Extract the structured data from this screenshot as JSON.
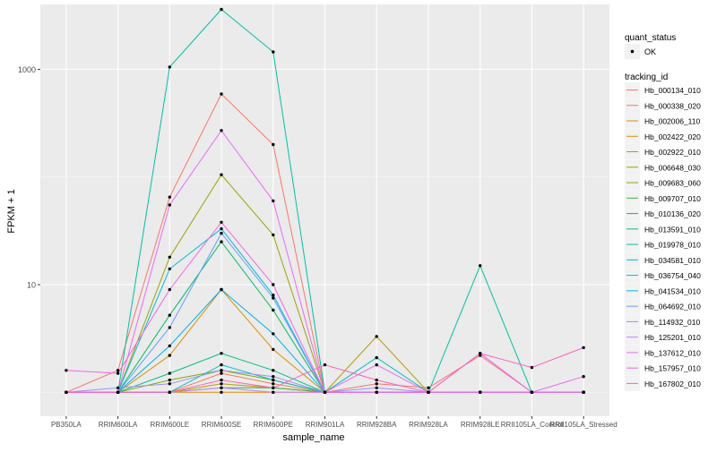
{
  "chart_data": {
    "type": "line",
    "xlabel": "sample_name",
    "ylabel": "FPKM + 1",
    "y_scale": "log10",
    "ylim": [
      0.6,
      4000
    ],
    "y_ticks": [
      10,
      1000
    ],
    "y_tick_labels": [
      "10",
      "1000"
    ],
    "grid": true,
    "legend_position": "right",
    "categories": [
      "PB350LA",
      "RRIM600LA",
      "RRIM600LE",
      "RRIM600SE",
      "RRIM600PE",
      "RRIM901LA",
      "RRIM928BA",
      "RRIM928LA",
      "RRIM928LE",
      "RRII105LA_Control",
      "RRII105LA_Stressed"
    ],
    "quant_legend": {
      "title": "quant_status",
      "entries": [
        {
          "label": "OK"
        }
      ]
    },
    "series_legend_title": "tracking_id",
    "series": [
      {
        "name": "Hb_000134_010",
        "color": "#F8766D",
        "values": [
          1.0,
          1.6,
          65,
          590,
          200,
          1.0,
          1.2,
          1.1,
          2.2,
          1.0,
          1.0
        ]
      },
      {
        "name": "Hb_000338_020",
        "color": "#F07E4F",
        "values": [
          1.0,
          1.0,
          1.0,
          1.5,
          1.2,
          1.0,
          1.0,
          1.0,
          1.0,
          1.0,
          1.0
        ]
      },
      {
        "name": "Hb_002006_110",
        "color": "#E58700",
        "values": [
          1.0,
          1.0,
          1.0,
          1.0,
          1.0,
          1.0,
          1.0,
          1.0,
          1.0,
          1.0,
          1.0
        ]
      },
      {
        "name": "Hb_002422_020",
        "color": "#D79000",
        "values": [
          1.0,
          1.0,
          2.2,
          9,
          2.5,
          1.0,
          1.0,
          1.0,
          1.0,
          1.0,
          1.0
        ]
      },
      {
        "name": "Hb_002922_010",
        "color": "#AD9D00",
        "values": [
          1.0,
          1.0,
          1.0,
          1.2,
          1.1,
          1.0,
          3.3,
          1.0,
          1.0,
          1.0,
          1.0
        ]
      },
      {
        "name": "Hb_006648_030",
        "color": "#9AA300",
        "values": [
          1.0,
          1.0,
          18,
          105,
          29,
          1.0,
          1.0,
          1.0,
          1.0,
          1.0,
          1.0
        ]
      },
      {
        "name": "Hb_009683_060",
        "color": "#79AD00",
        "values": [
          1.0,
          1.0,
          1.3,
          1.6,
          1.3,
          1.0,
          1.0,
          1.0,
          1.0,
          1.0,
          1.0
        ]
      },
      {
        "name": "Hb_009707_010",
        "color": "#3EB34A",
        "values": [
          1.0,
          1.0,
          1.0,
          1.1,
          1.1,
          1.0,
          1.0,
          1.0,
          1.0,
          1.0,
          1.0
        ]
      },
      {
        "name": "Hb_010136_020",
        "color": "#00BA66",
        "values": [
          1.0,
          1.0,
          5.2,
          25,
          5.8,
          1.0,
          1.0,
          1.0,
          1.0,
          1.0,
          1.0
        ]
      },
      {
        "name": "Hb_013591_010",
        "color": "#00BD85",
        "values": [
          1.0,
          1.0,
          1.5,
          2.3,
          1.6,
          1.0,
          1.0,
          1.0,
          1.0,
          1.0,
          1.0
        ]
      },
      {
        "name": "Hb_019978_010",
        "color": "#00C0A2",
        "values": [
          1.0,
          1.0,
          1050,
          3600,
          1450,
          1.0,
          1.0,
          1.0,
          15,
          1.0,
          1.0
        ]
      },
      {
        "name": "Hb_034581_010",
        "color": "#00BFBF",
        "values": [
          1.0,
          1.0,
          1.0,
          1.8,
          1.3,
          1.0,
          2.1,
          1.0,
          1.0,
          1.0,
          1.0
        ]
      },
      {
        "name": "Hb_036754_040",
        "color": "#00BAD8",
        "values": [
          1.0,
          1.0,
          14,
          33,
          8,
          1.0,
          1.0,
          1.0,
          1.0,
          1.0,
          1.0
        ]
      },
      {
        "name": "Hb_041534_010",
        "color": "#00B0F0",
        "values": [
          1.0,
          1.0,
          2.7,
          9,
          3.5,
          1.0,
          1.0,
          1.0,
          1.0,
          1.0,
          1.0
        ]
      },
      {
        "name": "Hb_064692_010",
        "color": "#619CFF",
        "values": [
          1.0,
          1.0,
          4.0,
          30,
          7.5,
          1.0,
          1.0,
          1.0,
          1.0,
          1.0,
          1.0
        ]
      },
      {
        "name": "Hb_114932_010",
        "color": "#A18CFF",
        "values": [
          1.0,
          1.1,
          1.2,
          1.6,
          1.4,
          1.0,
          1.1,
          1.0,
          1.0,
          1.0,
          1.0
        ]
      },
      {
        "name": "Hb_125201_010",
        "color": "#C77CFF",
        "values": [
          1.0,
          1.0,
          1.0,
          1.1,
          1.0,
          1.0,
          1.0,
          1.0,
          1.0,
          1.0,
          1.0
        ]
      },
      {
        "name": "Hb_137612_010",
        "color": "#E76BF3",
        "values": [
          1.0,
          1.0,
          55,
          270,
          60,
          1.0,
          1.8,
          1.0,
          2.3,
          1.0,
          1.4
        ]
      },
      {
        "name": "Hb_157957_010",
        "color": "#F564E3",
        "values": [
          1.6,
          1.5,
          9,
          38,
          10,
          1.0,
          1.0,
          1.0,
          1.0,
          1.0,
          1.0
        ]
      },
      {
        "name": "Hb_167802_010",
        "color": "#FF62BC",
        "values": [
          1.0,
          1.0,
          1.0,
          1.3,
          1.1,
          1.8,
          1.3,
          1.0,
          2.3,
          1.7,
          2.6
        ]
      }
    ]
  }
}
